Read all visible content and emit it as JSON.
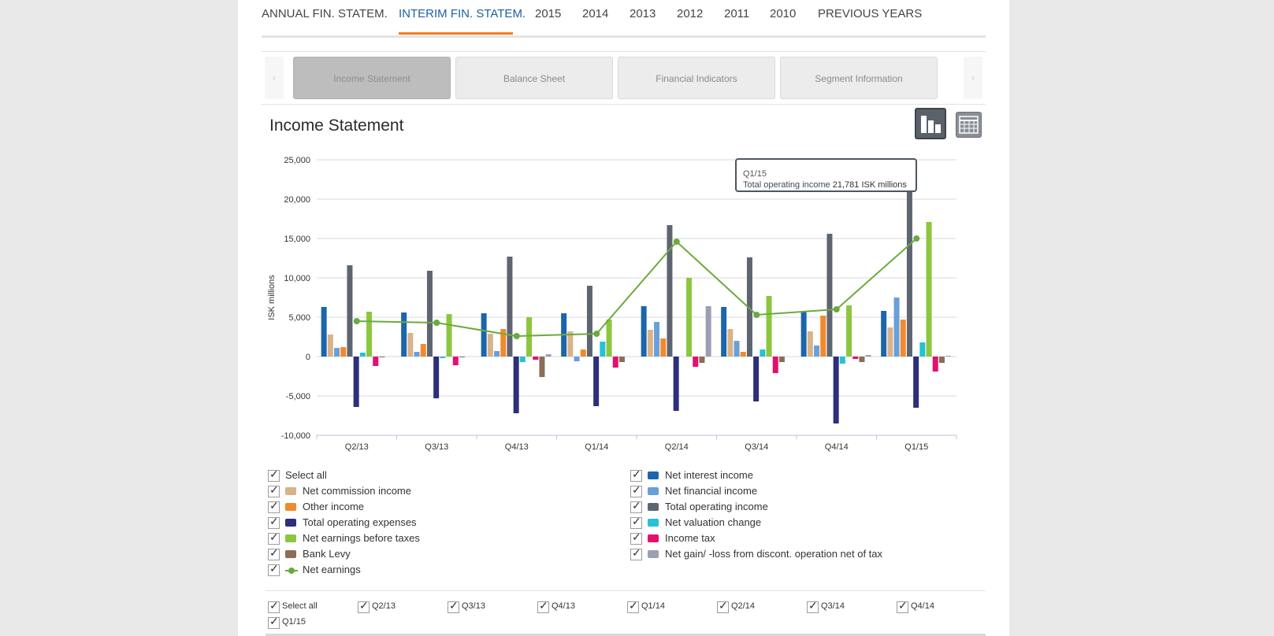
{
  "top_tabs": [
    {
      "label": "ANNUAL FIN. STATEM."
    },
    {
      "label": "INTERIM FIN. STATEM."
    },
    {
      "label": "2015"
    },
    {
      "label": "2014"
    },
    {
      "label": "2013"
    },
    {
      "label": "2012"
    },
    {
      "label": "2011"
    },
    {
      "label": "2010"
    },
    {
      "label": "PREVIOUS YEARS"
    }
  ],
  "sub_tabs": [
    {
      "label": "Income Statement"
    },
    {
      "label": "Balance Sheet"
    },
    {
      "label": "Financial Indicators"
    },
    {
      "label": "Segment Information"
    }
  ],
  "section_title": "Income Statement",
  "tooltip": {
    "period": "Q1/15",
    "series": "Total operating income",
    "value": "21,781 ISK millions"
  },
  "legend": {
    "select_all": "Select all",
    "left": [
      "Net commission income",
      "Other income",
      "Total operating expenses",
      "Net earnings before taxes",
      "Bank Levy",
      "Net earnings"
    ],
    "right": [
      "Net interest income",
      "Net financial income",
      "Total operating income",
      "Net valuation change",
      "Income tax",
      "Net gain/ -loss from discont. operation net of tax"
    ]
  },
  "period_filter": {
    "select_all": "Select all",
    "periods": [
      "Q2/13",
      "Q3/13",
      "Q4/13",
      "Q1/14",
      "Q2/14",
      "Q3/14",
      "Q4/14",
      "Q1/15"
    ]
  },
  "chart_data": {
    "type": "bar",
    "ylabel": "ISK millions",
    "ylim": [
      -10000,
      25000
    ],
    "yticks": [
      "25,000",
      "20,000",
      "15,000",
      "10,000",
      "5,000",
      "0",
      "-5,000",
      "-10,000"
    ],
    "grid": true,
    "categories": [
      "Q2/13",
      "Q3/13",
      "Q4/13",
      "Q1/14",
      "Q2/14",
      "Q3/14",
      "Q4/14",
      "Q1/15"
    ],
    "series": [
      {
        "name": "Net interest income",
        "color": "#1c65ad",
        "values": [
          6300,
          5600,
          5500,
          5500,
          6400,
          6300,
          5800,
          5800
        ]
      },
      {
        "name": "Net commission income",
        "color": "#d8b38a",
        "values": [
          2800,
          3000,
          2900,
          3200,
          3400,
          3500,
          3200,
          3700
        ]
      },
      {
        "name": "Net financial income",
        "color": "#6a9fd8",
        "values": [
          1100,
          600,
          700,
          -600,
          4400,
          2000,
          1400,
          7500
        ]
      },
      {
        "name": "Other income",
        "color": "#f08a2c",
        "values": [
          1200,
          1600,
          3500,
          900,
          2300,
          600,
          5200,
          4700
        ]
      },
      {
        "name": "Total operating income",
        "color": "#5e6572",
        "values": [
          11600,
          10900,
          12700,
          9000,
          16700,
          12600,
          15600,
          21781
        ]
      },
      {
        "name": "Total operating expenses",
        "color": "#2c2f7a",
        "values": [
          -6400,
          -5300,
          -7200,
          -6300,
          -6900,
          -5700,
          -8500,
          -6500
        ]
      },
      {
        "name": "Net valuation change",
        "color": "#26c1d6",
        "values": [
          500,
          -200,
          -700,
          1900,
          0,
          900,
          -900,
          1800
        ]
      },
      {
        "name": "Net earnings before taxes",
        "color": "#8cc63f",
        "values": [
          5700,
          5400,
          5000,
          4700,
          10000,
          7700,
          6500,
          17100
        ]
      },
      {
        "name": "Income tax",
        "color": "#e3106e",
        "values": [
          -1200,
          -1100,
          -400,
          -1400,
          -1300,
          -2100,
          -300,
          -1900
        ]
      },
      {
        "name": "Bank Levy",
        "color": "#8c6d56",
        "values": [
          -100,
          -100,
          -2600,
          -700,
          -800,
          -700,
          -700,
          -800
        ]
      },
      {
        "name": "Net gain/ -loss from discont. operation net of tax",
        "color": "#9aa0b3",
        "values": [
          0,
          0,
          300,
          0,
          6400,
          0,
          200,
          100
        ]
      }
    ],
    "line": {
      "name": "Net earnings",
      "color": "#6aaa3e",
      "values": [
        4500,
        4300,
        2600,
        2900,
        14600,
        5300,
        6000,
        15000
      ]
    }
  }
}
